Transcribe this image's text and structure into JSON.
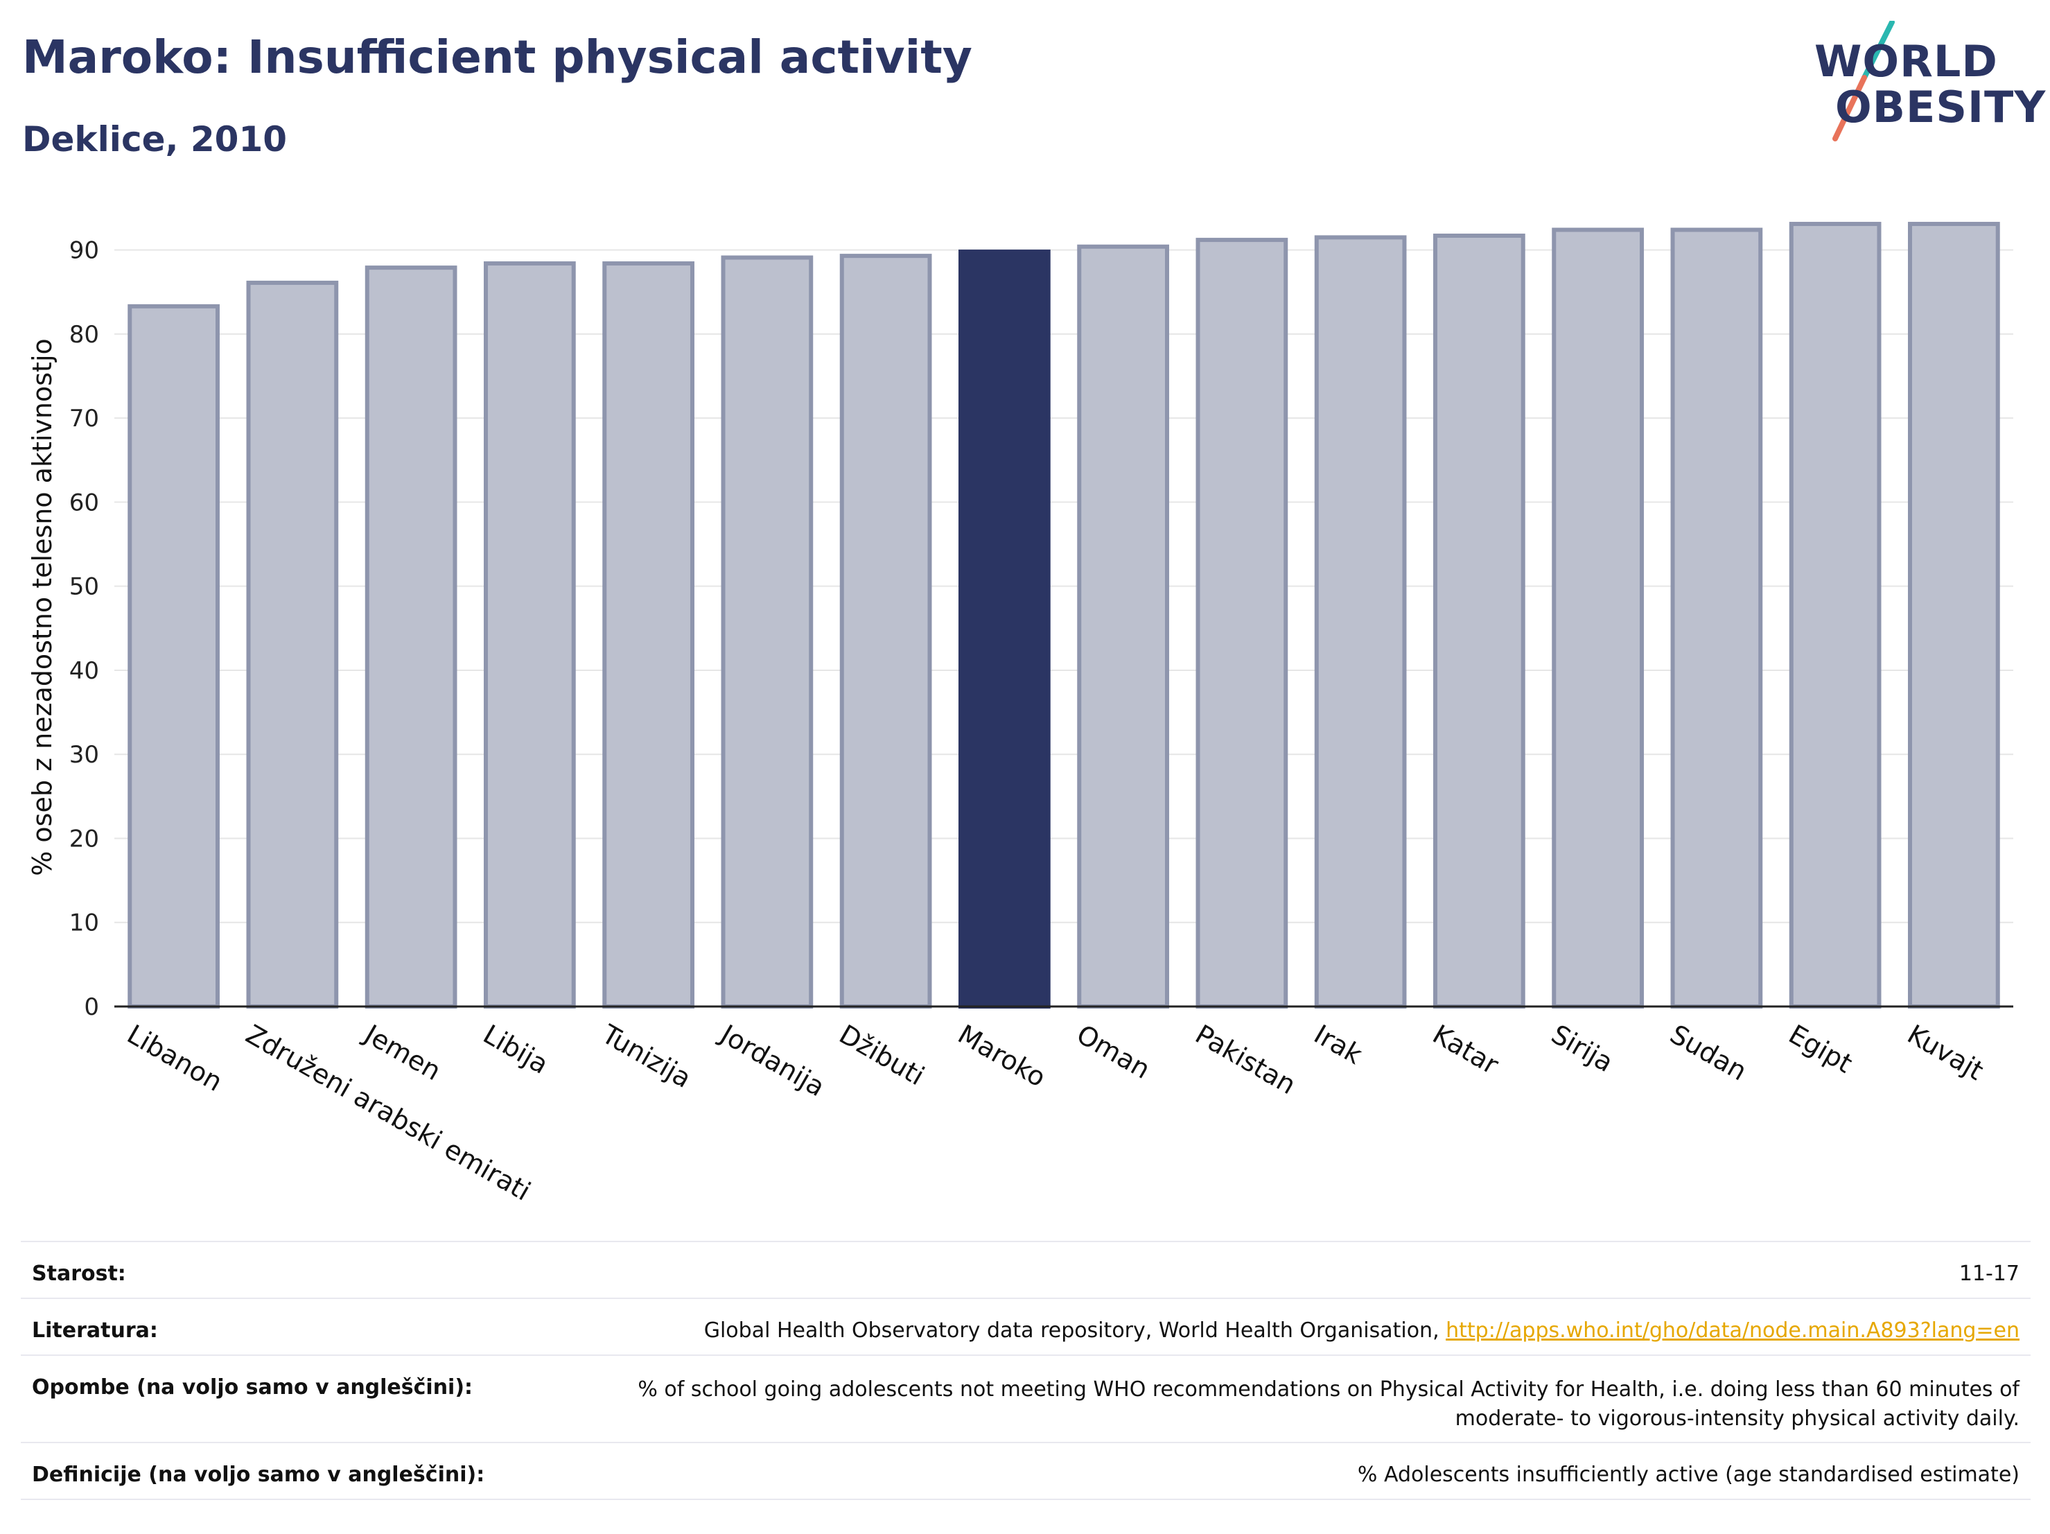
{
  "header": {
    "title": "Maroko: Insufficient physical activity",
    "subtitle": "Deklice, 2010"
  },
  "logo": {
    "line1": "WORLD",
    "line2": "OBESITY",
    "accent_teal": "#2ab7b0",
    "accent_coral": "#e8735a"
  },
  "colors": {
    "bar_default": "#bcc0ce",
    "bar_border": "#8e95ad",
    "bar_highlight": "#2b3563",
    "title": "#2b3563",
    "link": "#e6a700"
  },
  "chart_data": {
    "type": "bar",
    "categories": [
      "Libanon",
      "Združeni arabski emirati",
      "Jemen",
      "Libija",
      "Tunizija",
      "Jordanija",
      "Džibuti",
      "Maroko",
      "Oman",
      "Pakistan",
      "Irak",
      "Katar",
      "Sirija",
      "Sudan",
      "Egipt",
      "Kuvajt"
    ],
    "values": [
      83.3,
      86.1,
      87.9,
      88.4,
      88.4,
      89.1,
      89.3,
      89.8,
      90.4,
      91.2,
      91.5,
      91.7,
      92.4,
      92.4,
      93.1,
      93.1
    ],
    "highlight": "Maroko",
    "ylabel": "% oseb z nezadostno telesno aktivnostjo",
    "yticks": [
      0,
      10,
      20,
      30,
      40,
      50,
      60,
      70,
      80,
      90
    ],
    "ylim": [
      0,
      95
    ],
    "grid": true
  },
  "info": {
    "age_label": "Starost:",
    "age_value": "11-17",
    "source_label": "Literatura:",
    "source_text": "Global Health Observatory data repository, World Health Organisation, ",
    "source_link": "http://apps.who.int/gho/data/node.main.A893?lang=en",
    "notes_label": "Opombe (na voljo samo v angleščini):",
    "notes_line1": "% of school going adolescents not meeting WHO recommendations on Physical Activity for Health, i.e. doing less than 60 minutes of",
    "notes_line2": "moderate- to vigorous-intensity physical activity daily.",
    "definition_label": "Definicije (na voljo samo v angleščini):",
    "definition_value": "% Adolescents insufficiently active (age standardised estimate)"
  }
}
